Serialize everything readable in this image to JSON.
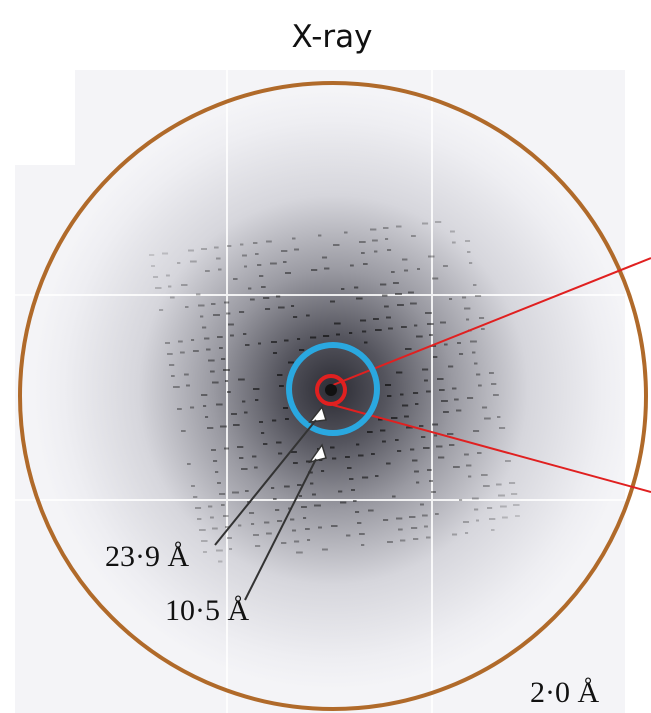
{
  "title": "X-ray",
  "annotations": [
    "23·9 Å",
    "10·5 Å",
    "2·0 Å"
  ]
}
